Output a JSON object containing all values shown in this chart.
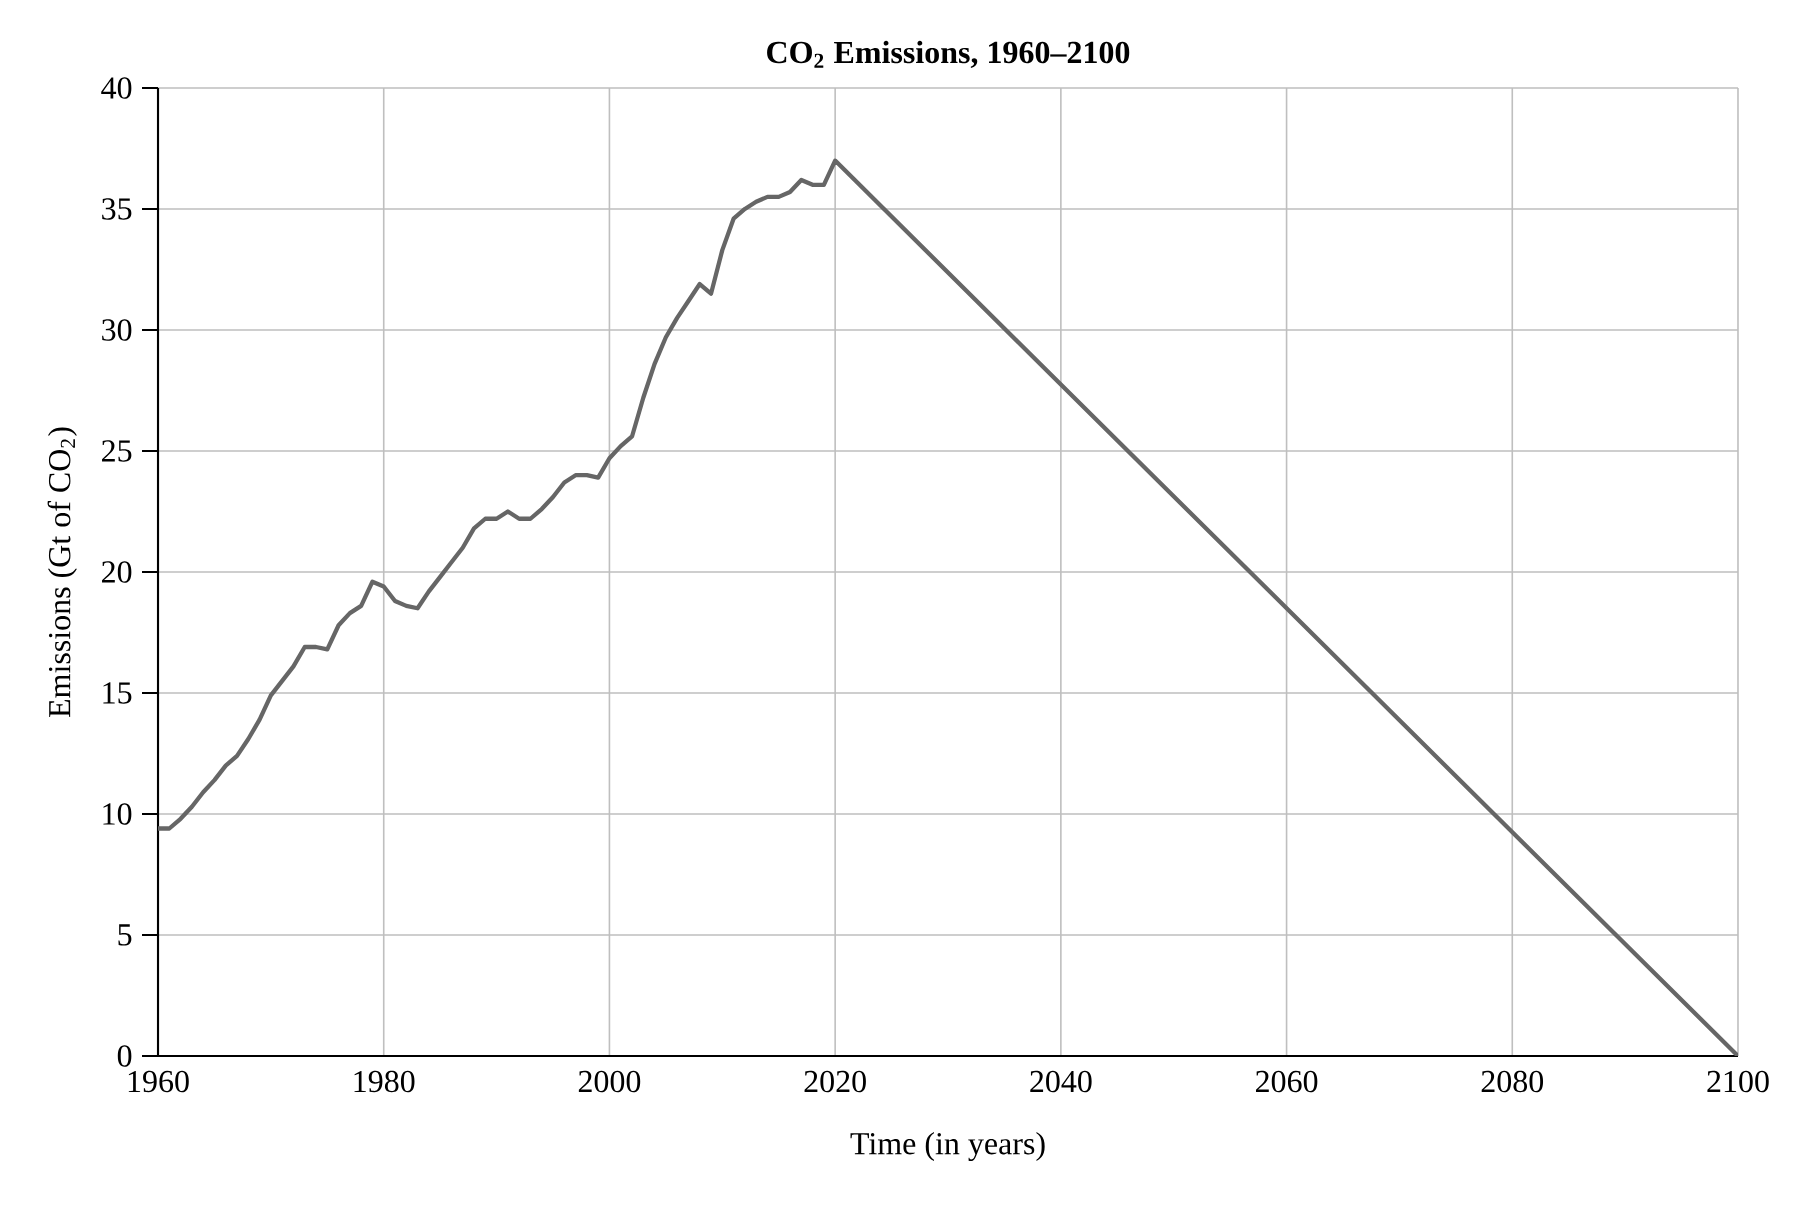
{
  "chart_data": {
    "type": "line",
    "title": "**CO$_{2}$ Emissions, 1960–2100**",
    "xlabel": "Time (in years)",
    "ylabel": "Emissions (Gt of CO$_{2}$)",
    "xlim": [
      1960,
      2100
    ],
    "xticks": [
      1960,
      1980,
      2000,
      2020,
      2040,
      2060,
      2080,
      2100
    ],
    "ylim": [
      0,
      40
    ],
    "yticks": [
      0,
      5,
      10,
      15,
      20,
      25,
      30,
      35,
      40
    ],
    "grid": true,
    "marker": "none",
    "line_style": "solid",
    "series": [
      {
        "color": "#666666",
        "x": [
          1960,
          1961,
          1962,
          1963,
          1964,
          1965,
          1966,
          1967,
          1968,
          1969,
          1970,
          1971,
          1972,
          1973,
          1974,
          1975,
          1976,
          1977,
          1978,
          1979,
          1980,
          1981,
          1982,
          1983,
          1984,
          1985,
          1986,
          1987,
          1988,
          1989,
          1990,
          1991,
          1992,
          1993,
          1994,
          1995,
          1996,
          1997,
          1998,
          1999,
          2000,
          2001,
          2002,
          2003,
          2004,
          2005,
          2006,
          2007,
          2008,
          2009,
          2010,
          2011,
          2012,
          2013,
          2014,
          2015,
          2016,
          2017,
          2018,
          2019,
          2020,
          2100
        ],
        "values": [
          9.4,
          9.4,
          9.8,
          10.3,
          10.9,
          11.4,
          12.0,
          12.4,
          13.1,
          13.9,
          14.9,
          15.5,
          16.1,
          16.9,
          16.9,
          16.8,
          17.8,
          18.3,
          18.6,
          19.6,
          19.4,
          18.8,
          18.6,
          18.5,
          19.2,
          19.8,
          20.4,
          21.0,
          21.8,
          22.2,
          22.2,
          22.5,
          22.2,
          22.2,
          22.6,
          23.1,
          23.7,
          24.0,
          24.0,
          23.9,
          24.7,
          25.2,
          25.6,
          27.2,
          28.6,
          29.7,
          30.5,
          31.2,
          31.9,
          31.5,
          33.3,
          34.6,
          35.0,
          35.3,
          35.5,
          35.5,
          35.7,
          36.2,
          36.0,
          36.0,
          37.0,
          0
        ]
      }
    ]
  }
}
